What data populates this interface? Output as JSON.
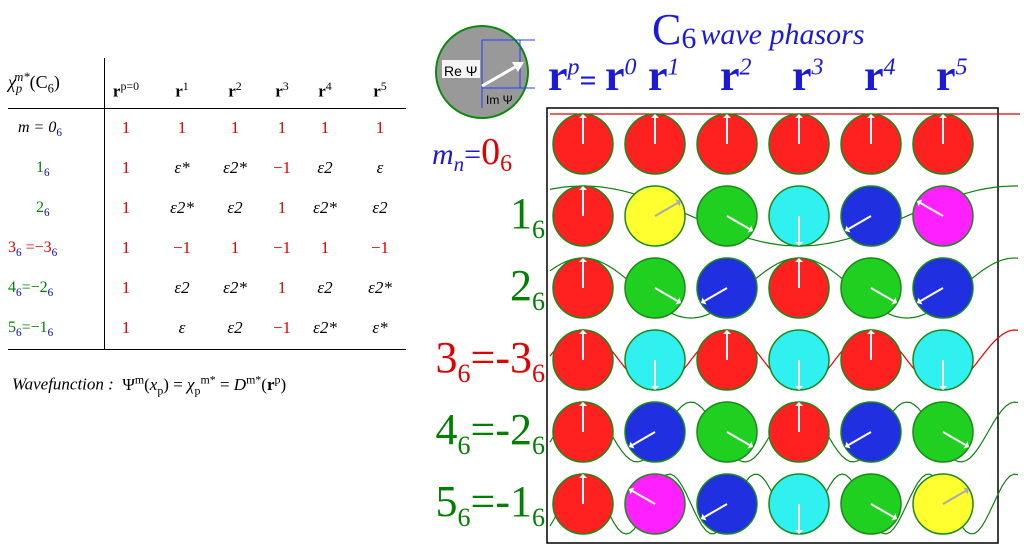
{
  "title": {
    "main": "C",
    "sub": "6",
    "suffix": "wave phasors"
  },
  "legend_circle": {
    "re_label": "Re Ψ",
    "im_label": "Im Ψ"
  },
  "column_header_prefix": {
    "base": "r",
    "exp": "p",
    "eq": "="
  },
  "columns": [
    {
      "base": "r",
      "exp": "0"
    },
    {
      "base": "r",
      "exp": "1"
    },
    {
      "base": "r",
      "exp": "2"
    },
    {
      "base": "r",
      "exp": "3"
    },
    {
      "base": "r",
      "exp": "4"
    },
    {
      "base": "r",
      "exp": "5"
    }
  ],
  "mn_label": {
    "m": "m",
    "n": "n",
    "eq": "=",
    "value": "0",
    "value_sub": "6"
  },
  "phasor_rows": [
    {
      "label": "",
      "colors": [
        "#ff2020",
        "#ff2020",
        "#ff2020",
        "#ff2020",
        "#ff2020",
        "#ff2020"
      ],
      "angles": [
        0,
        0,
        0,
        0,
        0,
        0
      ]
    },
    {
      "label_parts": [
        "1",
        "6"
      ],
      "colors": [
        "#ff2020",
        "#ffff30",
        "#20d020",
        "#30f0f0",
        "#2030e0",
        "#ff20ff"
      ],
      "angles": [
        0,
        60,
        120,
        180,
        240,
        300
      ]
    },
    {
      "label_parts": [
        "2",
        "6"
      ],
      "colors": [
        "#ff2020",
        "#20d020",
        "#2030e0",
        "#ff2020",
        "#20d020",
        "#2030e0"
      ],
      "angles": [
        0,
        120,
        240,
        0,
        120,
        240
      ]
    },
    {
      "label_parts": [
        "3",
        "6",
        "=-3",
        "6"
      ],
      "colors": [
        "#ff2020",
        "#30f0f0",
        "#ff2020",
        "#30f0f0",
        "#ff2020",
        "#30f0f0"
      ],
      "angles": [
        0,
        180,
        0,
        180,
        0,
        180
      ]
    },
    {
      "label_parts": [
        "4",
        "6",
        "=-2",
        "6"
      ],
      "colors": [
        "#ff2020",
        "#2030e0",
        "#20d020",
        "#ff2020",
        "#2030e0",
        "#20d020"
      ],
      "angles": [
        0,
        240,
        120,
        0,
        240,
        120
      ]
    },
    {
      "label_parts": [
        "5",
        "6",
        "=-1",
        "6"
      ],
      "colors": [
        "#ff2020",
        "#ff20ff",
        "#2030e0",
        "#30f0f0",
        "#20d020",
        "#ffff30"
      ],
      "angles": [
        0,
        300,
        240,
        180,
        120,
        60
      ]
    }
  ],
  "table": {
    "corner": {
      "chi": "χ",
      "sup": "m*",
      "sub": "p",
      "group": "(C",
      "group_sub": "6",
      "group_close": ")"
    },
    "headers": [
      "r",
      "r",
      "r",
      "r",
      "r",
      "r"
    ],
    "header_sups": [
      "p=0",
      "1",
      "2",
      "3",
      "4",
      "5"
    ],
    "rows": [
      {
        "label": "m = 0",
        "label_sub": "6",
        "cells": [
          "1",
          "1",
          "1",
          "1",
          "1",
          "1"
        ]
      },
      {
        "label": "1",
        "label_sub": "6",
        "cells": [
          "1",
          "ε*",
          "ε2*",
          "−1",
          "ε2",
          "ε"
        ]
      },
      {
        "label": "2",
        "label_sub": "6",
        "cells": [
          "1",
          "ε2*",
          "ε2",
          "1",
          "ε2*",
          "ε2"
        ]
      },
      {
        "label": "3",
        "label_sub": "6",
        "label_rest": " =−3",
        "label_rest_sub": "6",
        "cells": [
          "1",
          "−1",
          "1",
          "−1",
          "1",
          "−1"
        ]
      },
      {
        "label": "4",
        "label_sub": "6",
        "label_rest": "=−2",
        "label_rest_sub": "6",
        "cells": [
          "1",
          "ε2",
          "ε2*",
          "1",
          "ε2",
          "ε2*"
        ]
      },
      {
        "label": "5",
        "label_sub": "6",
        "label_rest": "=−1",
        "label_rest_sub": "6",
        "cells": [
          "1",
          "ε",
          "ε2",
          "−1",
          "ε2*",
          "ε*"
        ]
      }
    ]
  },
  "wavefunction": {
    "label": "Wavefunction :",
    "formula": "Ψ^m(x_p) = χ_p^m* = D^m*(r^p)"
  }
}
